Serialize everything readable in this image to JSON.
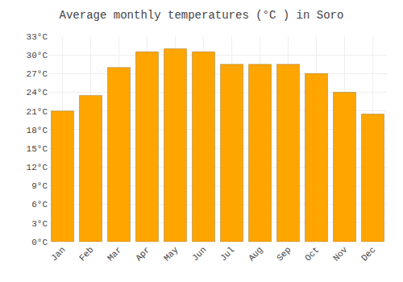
{
  "chart_data": {
    "type": "bar",
    "title": "Average monthly temperatures (°C ) in Soro",
    "categories": [
      "Jan",
      "Feb",
      "Mar",
      "Apr",
      "May",
      "Jun",
      "Jul",
      "Aug",
      "Sep",
      "Oct",
      "Nov",
      "Dec"
    ],
    "values": [
      21,
      23.5,
      28,
      30.5,
      31,
      30.5,
      28.5,
      28.5,
      28.5,
      27,
      24,
      20.5
    ],
    "color": "#FFA500",
    "ylim": [
      0,
      33
    ],
    "yticks": [
      {
        "value": 0,
        "label": "0°C"
      },
      {
        "value": 3,
        "label": "3°C"
      },
      {
        "value": 6,
        "label": "6°C"
      },
      {
        "value": 9,
        "label": "9°C"
      },
      {
        "value": 12,
        "label": "12°C"
      },
      {
        "value": 15,
        "label": "15°C"
      },
      {
        "value": 18,
        "label": "18°C"
      },
      {
        "value": 21,
        "label": "21°C"
      },
      {
        "value": 24,
        "label": "24°C"
      },
      {
        "value": 27,
        "label": "27°C"
      },
      {
        "value": 30,
        "label": "30°C"
      },
      {
        "value": 33,
        "label": "33°C"
      }
    ],
    "grid": true
  }
}
